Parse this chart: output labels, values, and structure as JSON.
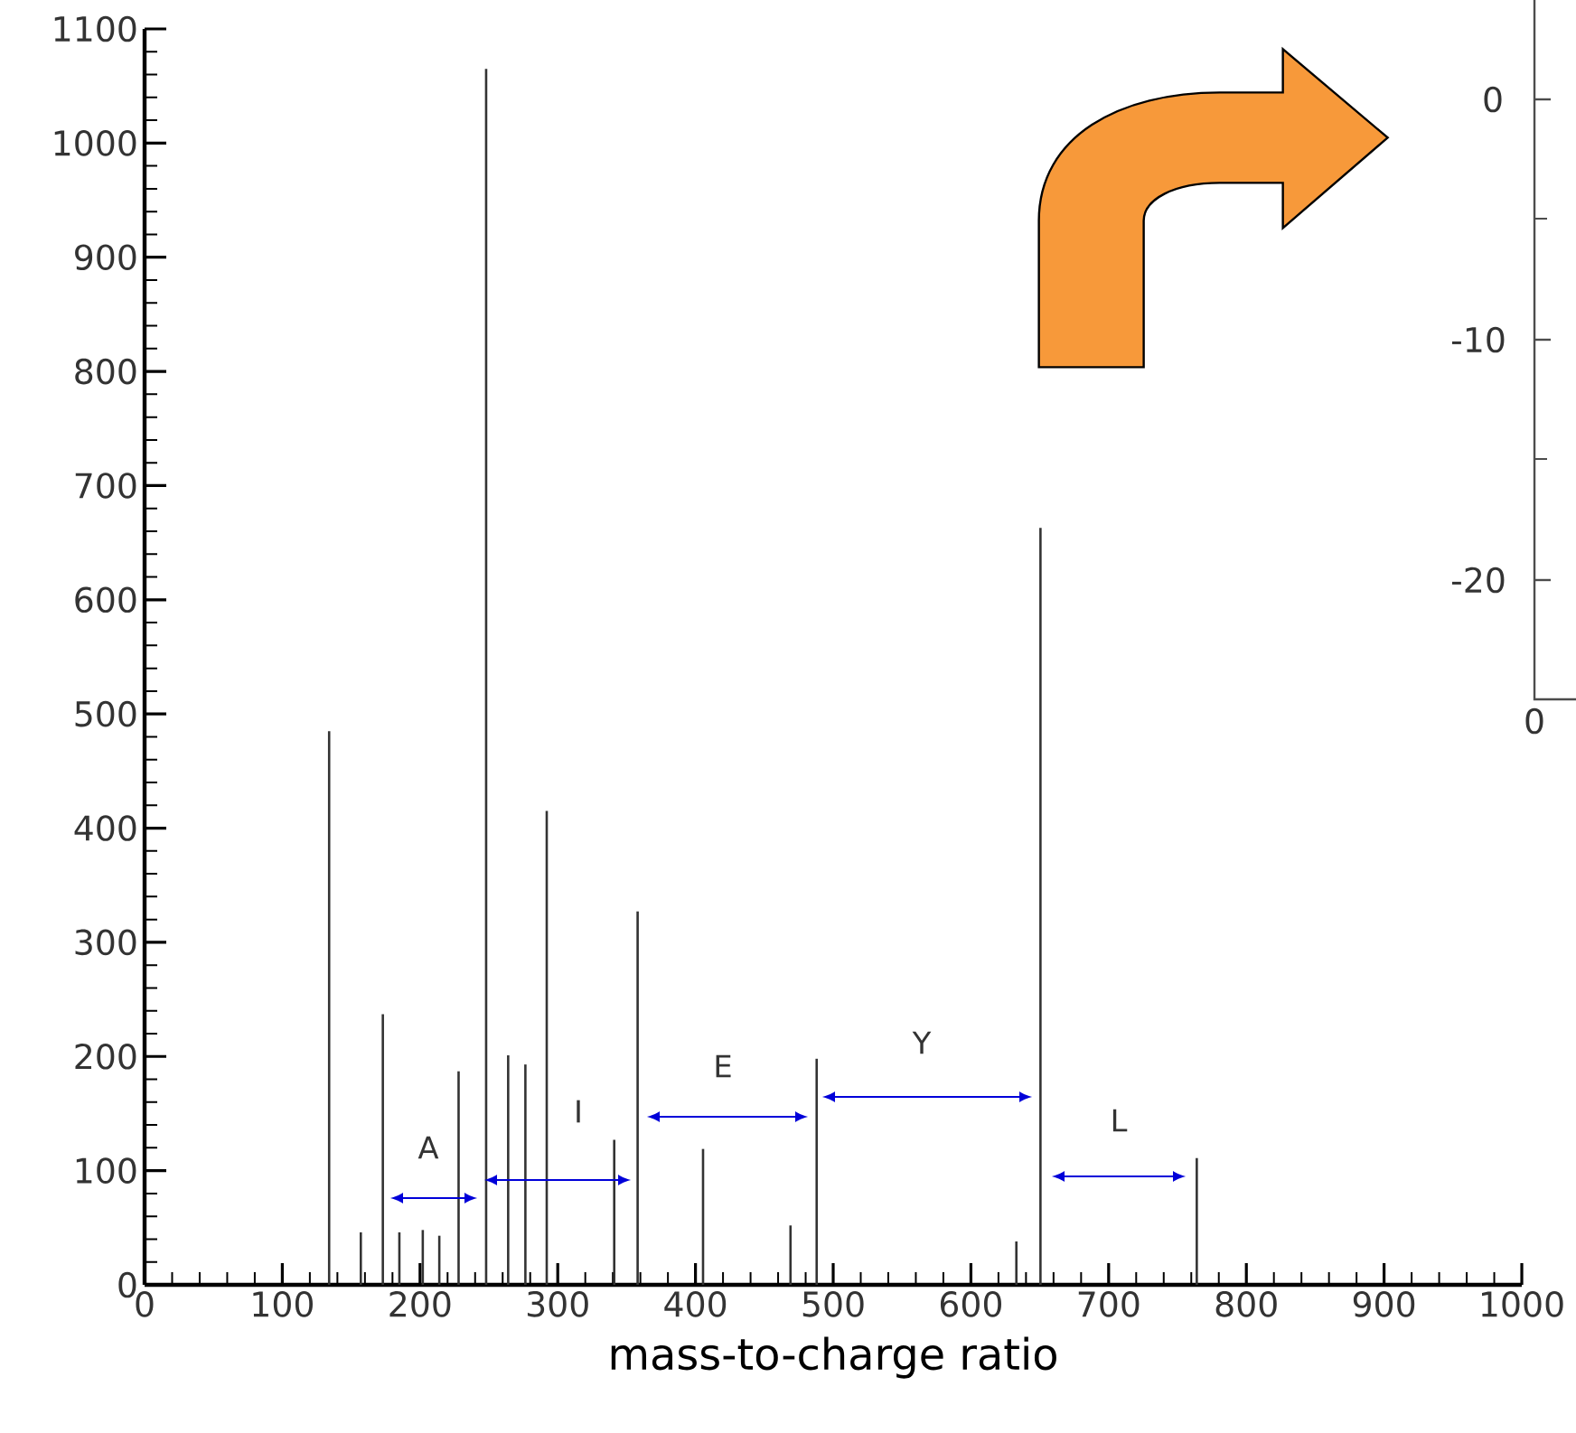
{
  "chart_data": [
    {
      "type": "bar",
      "xlabel": "mass-to-charge ratio",
      "x": [
        134,
        157,
        173,
        185,
        202,
        214,
        228,
        248,
        264,
        276.5,
        292,
        341,
        358,
        405.5,
        469,
        488,
        633,
        650.5,
        764
      ],
      "values": [
        485,
        46,
        237,
        46,
        48,
        43,
        187,
        1065,
        201,
        193,
        415,
        127,
        327,
        119,
        52,
        198,
        38,
        663,
        111
      ],
      "color": "#333333",
      "xlim": [
        0,
        1000
      ],
      "xticks": [
        0,
        100,
        200,
        300,
        400,
        500,
        600,
        700,
        800,
        900,
        1000
      ],
      "ylim": [
        0,
        1100
      ],
      "yticks": [
        0,
        100,
        200,
        300,
        400,
        500,
        600,
        700,
        800,
        900,
        1000,
        1100
      ],
      "annotations": [
        "A",
        "I",
        "E",
        "Y",
        "L"
      ]
    },
    {
      "type": "other",
      "annotations": [
        "0",
        "-10",
        "-20",
        "0"
      ]
    }
  ]
}
